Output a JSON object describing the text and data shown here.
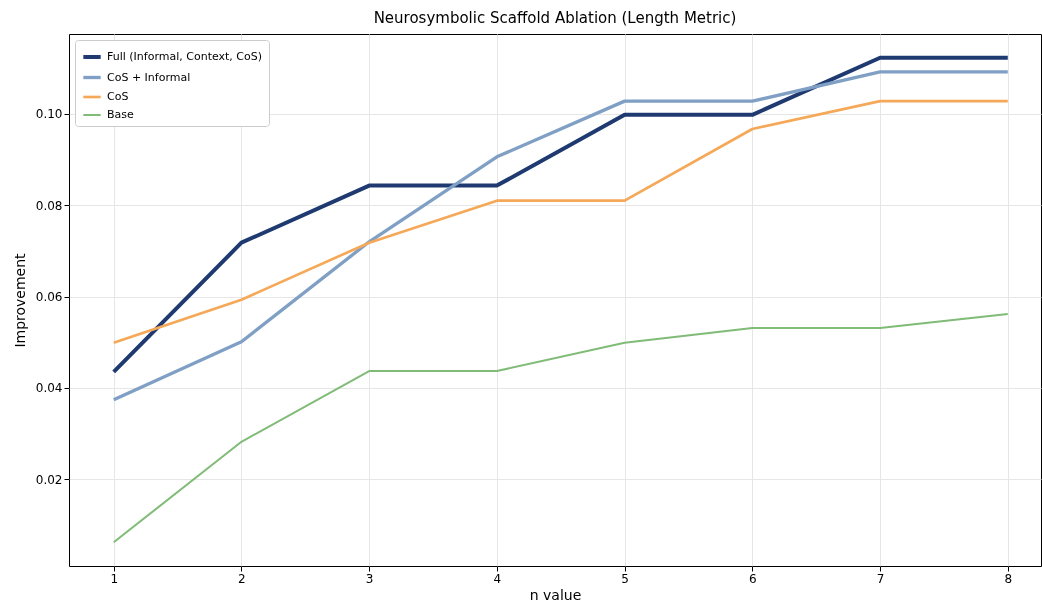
{
  "chart_data": {
    "type": "line",
    "title": "Neurosymbolic Scaffold Ablation (Length Metric)",
    "xlabel": "n value",
    "ylabel": "Improvement",
    "x": [
      1,
      2,
      3,
      4,
      5,
      6,
      7,
      8
    ],
    "series": [
      {
        "name": "Full (Informal, Context, CoS)",
        "color": "#1f3a70",
        "values": [
          0.0435,
          0.0718,
          0.0843,
          0.0843,
          0.0998,
          0.0998,
          0.1123,
          0.1123
        ]
      },
      {
        "name": "CoS + Informal",
        "color": "#7f9fc4",
        "values": [
          0.0374,
          0.0501,
          0.072,
          0.0906,
          0.1028,
          0.1028,
          0.1092,
          0.1092
        ]
      },
      {
        "name": "CoS",
        "color": "#f5a857",
        "values": [
          0.0499,
          0.0593,
          0.0718,
          0.081,
          0.081,
          0.0967,
          0.1028,
          0.1028
        ]
      },
      {
        "name": "Base",
        "color": "#80bb77",
        "values": [
          0.0062,
          0.0282,
          0.0437,
          0.0437,
          0.0499,
          0.0531,
          0.0531,
          0.0562
        ]
      }
    ],
    "xlim": [
      0.65,
      8.26
    ],
    "xticks": [
      1,
      2,
      3,
      4,
      5,
      6,
      7,
      8
    ],
    "ylim": [
      0.001,
      0.1175
    ],
    "yticks": [
      0.02,
      0.04,
      0.06,
      0.08,
      {
        "value": 0.1,
        "label": "0.10"
      }
    ],
    "grid": true,
    "legend": "top left",
    "marker": "none",
    "line_style": "solid"
  }
}
